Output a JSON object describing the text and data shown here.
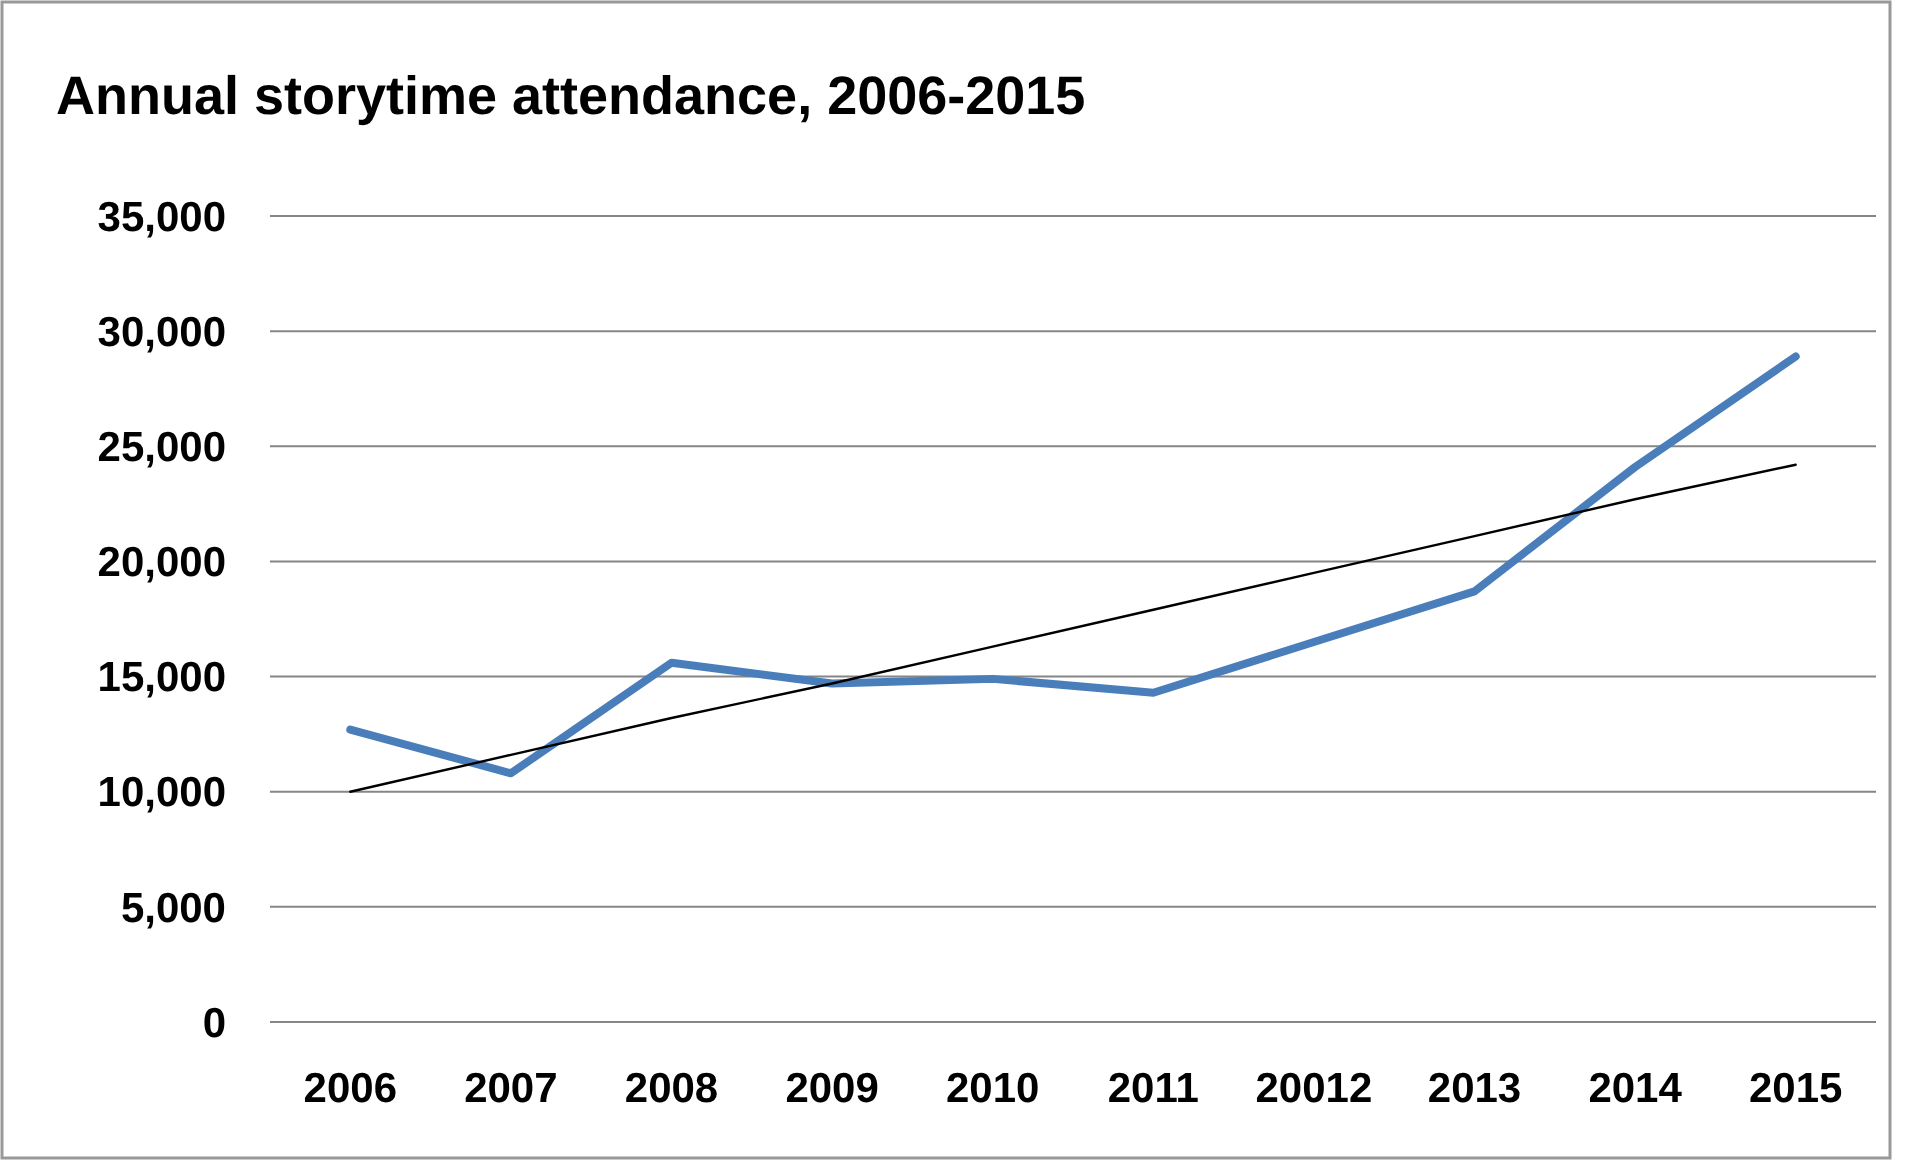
{
  "chart_data": {
    "type": "line",
    "title": "Annual storytime attendance, 2006-2015",
    "categories": [
      "2006",
      "2007",
      "2008",
      "2009",
      "2010",
      "2011",
      "20012",
      "2013",
      "2014",
      "2015"
    ],
    "series": [
      {
        "color": "#4a7ebb",
        "values": [
          12700,
          10800,
          15600,
          14700,
          14900,
          14300,
          16500,
          18700,
          24100,
          28900
        ]
      },
      {
        "type": "line",
        "color": "#000000",
        "values": [
          10000,
          11600,
          13200,
          14700,
          16300,
          17900,
          19500,
          21100,
          22700,
          24200
        ]
      }
    ],
    "ylim": [
      0,
      35000
    ],
    "yticks": [
      {
        "value": 0,
        "label": "0"
      },
      {
        "value": 5000,
        "label": "5,000"
      },
      {
        "value": 10000,
        "label": "10,000"
      },
      {
        "value": 15000,
        "label": "15,000"
      },
      {
        "value": 20000,
        "label": "20,000"
      },
      {
        "value": 25000,
        "label": "25,000"
      },
      {
        "value": 30000,
        "label": "30,000"
      },
      {
        "value": 35000,
        "label": "35,000"
      }
    ],
    "grid": "y",
    "marker": "none",
    "line_style": "solid"
  }
}
